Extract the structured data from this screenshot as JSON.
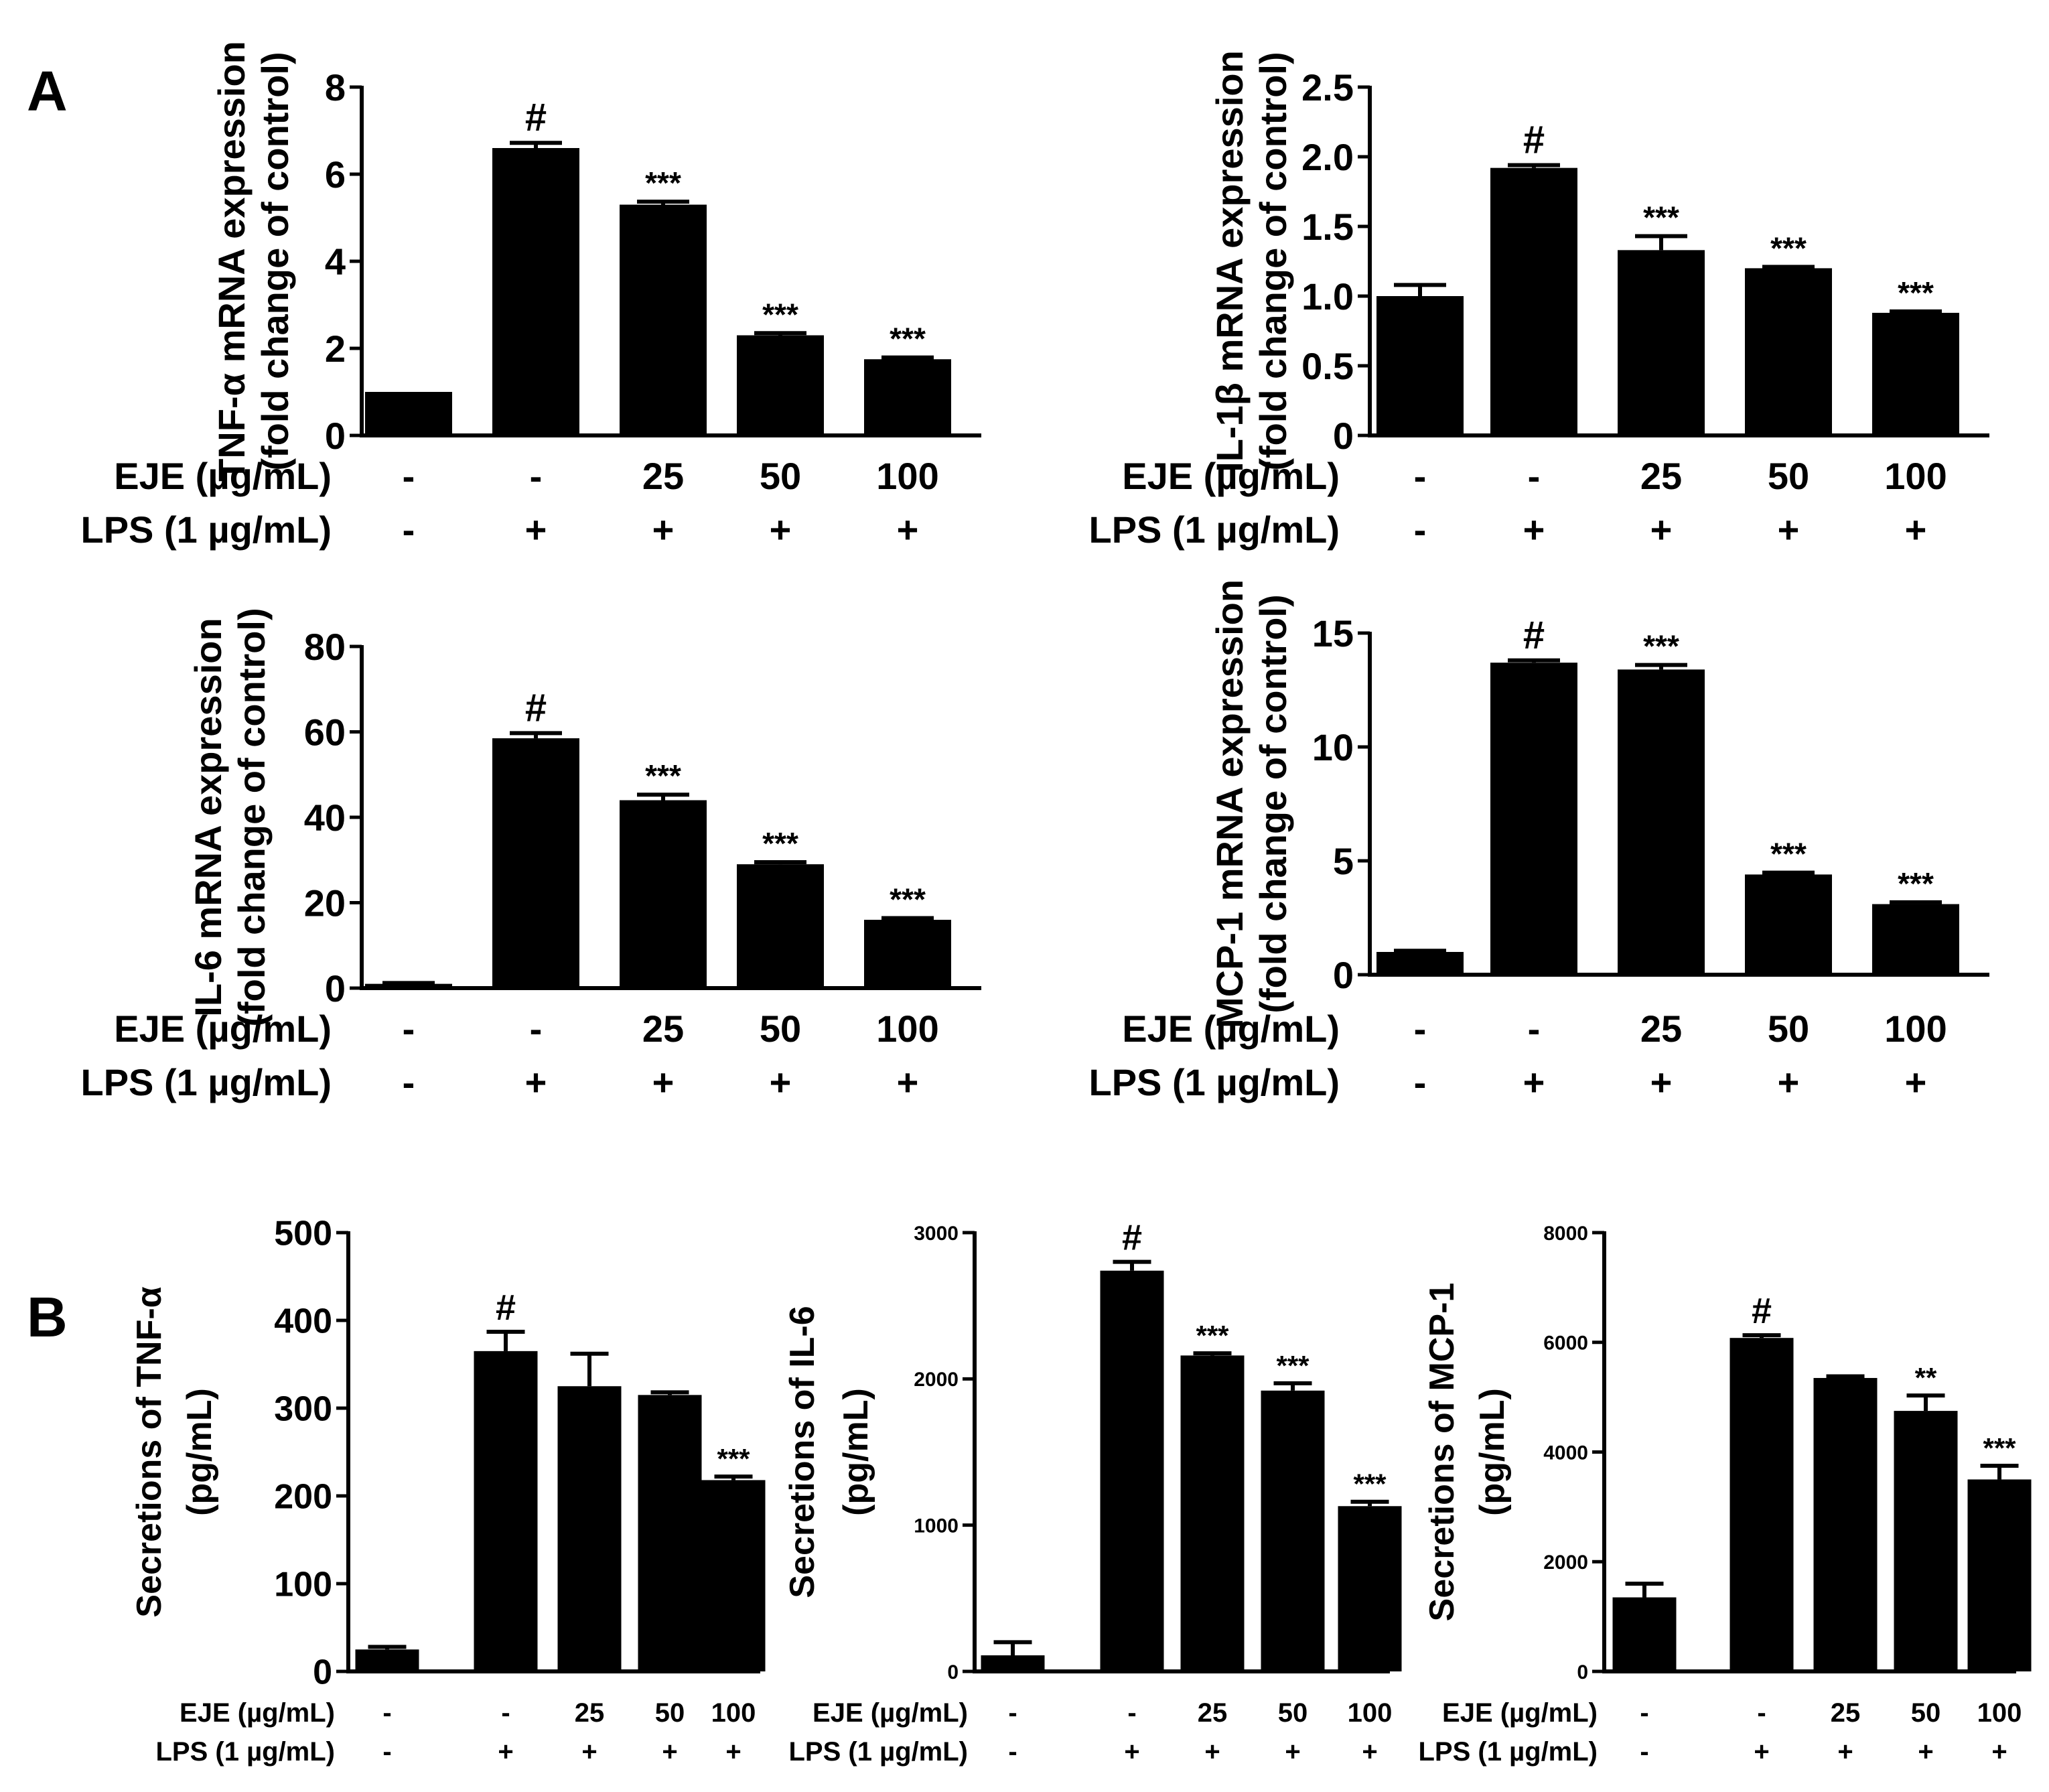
{
  "chart_data": [
    {
      "type": "bar",
      "id": "tnf-mrna",
      "panel_label": "A",
      "ylabel_line1": "TNF-α mRNA expression",
      "ylabel_line2": "(fold change of control)",
      "ylim": [
        0,
        8
      ],
      "yticks": [
        0,
        2,
        4,
        6,
        8
      ],
      "ytick_labels": [
        "0",
        "2",
        "4",
        "6",
        "8"
      ],
      "values": [
        1.0,
        6.6,
        5.3,
        2.3,
        1.75
      ],
      "errors": [
        0.0,
        0.12,
        0.07,
        0.05,
        0.04
      ],
      "annotations": [
        "",
        "#",
        "***",
        "***",
        "***"
      ],
      "rows": [
        {
          "label": "EJE (µg/mL)",
          "values": [
            "-",
            "-",
            "25",
            "50",
            "100"
          ]
        },
        {
          "label": "LPS (1 µg/mL)",
          "values": [
            "-",
            "+",
            "+",
            "+",
            "+"
          ]
        }
      ]
    },
    {
      "type": "bar",
      "id": "il1b-mrna",
      "panel_label": "",
      "ylabel_line1": "IL-1β mRNA expression",
      "ylabel_line2": "(fold change of control)",
      "ylim": [
        0,
        2.5
      ],
      "yticks": [
        0,
        0.5,
        1.0,
        1.5,
        2.0,
        2.5
      ],
      "ytick_labels": [
        "0",
        "0.5",
        "1.0",
        "1.5",
        "2.0",
        "2.5"
      ],
      "values": [
        1.0,
        1.92,
        1.33,
        1.2,
        0.88
      ],
      "errors": [
        0.08,
        0.02,
        0.1,
        0.01,
        0.01
      ],
      "annotations": [
        "",
        "#",
        "***",
        "***",
        "***"
      ],
      "rows": [
        {
          "label": "EJE (µg/mL)",
          "values": [
            "-",
            "-",
            "25",
            "50",
            "100"
          ]
        },
        {
          "label": "LPS (1 µg/mL)",
          "values": [
            "-",
            "+",
            "+",
            "+",
            "+"
          ]
        }
      ]
    },
    {
      "type": "bar",
      "id": "il6-mrna",
      "panel_label": "",
      "ylabel_line1": "IL-6 mRNA expression",
      "ylabel_line2": "(fold change of control)",
      "ylim": [
        0,
        80
      ],
      "yticks": [
        0,
        20,
        40,
        60,
        80
      ],
      "ytick_labels": [
        "0",
        "20",
        "40",
        "60",
        "80"
      ],
      "values": [
        1.0,
        58.5,
        44.0,
        29.0,
        16.0
      ],
      "errors": [
        0.2,
        1.2,
        1.3,
        0.5,
        0.4
      ],
      "annotations": [
        "",
        "#",
        "***",
        "***",
        "***"
      ],
      "rows": [
        {
          "label": "EJE (µg/mL)",
          "values": [
            "-",
            "-",
            "25",
            "50",
            "100"
          ]
        },
        {
          "label": "LPS (1 µg/mL)",
          "values": [
            "-",
            "+",
            "+",
            "+",
            "+"
          ]
        }
      ]
    },
    {
      "type": "bar",
      "id": "mcp1-mrna",
      "panel_label": "",
      "ylabel_line1": "MCP-1 mRNA expression",
      "ylabel_line2": "(fold change of control)",
      "ylim": [
        0,
        15
      ],
      "yticks": [
        0,
        5,
        10,
        15
      ],
      "ytick_labels": [
        "0",
        "5",
        "10",
        "15"
      ],
      "values": [
        1.0,
        13.7,
        13.4,
        4.4,
        3.1
      ],
      "errors": [
        0.05,
        0.1,
        0.2,
        0.08,
        0.08
      ],
      "annotations": [
        "",
        "#",
        "***",
        "***",
        "***"
      ],
      "rows": [
        {
          "label": "EJE (µg/mL)",
          "values": [
            "-",
            "-",
            "25",
            "50",
            "100"
          ]
        },
        {
          "label": "LPS (1 µg/mL)",
          "values": [
            "-",
            "+",
            "+",
            "+",
            "+"
          ]
        }
      ]
    },
    {
      "type": "bar",
      "id": "tnf-secretion",
      "panel_label": "B",
      "ylabel_line1": "Secretions of TNF-α",
      "ylabel_line2": "(pg/mL)",
      "ylim": [
        0,
        500
      ],
      "yticks": [
        0,
        100,
        200,
        300,
        400,
        500
      ],
      "ytick_labels": [
        "0",
        "100",
        "200",
        "300",
        "400",
        "500"
      ],
      "values": [
        25,
        365,
        325,
        315,
        218
      ],
      "errors": [
        3,
        22,
        37,
        3,
        4
      ],
      "annotations": [
        "",
        "#",
        "",
        "",
        "***"
      ],
      "rows": [
        {
          "label": "EJE (µg/mL)",
          "values": [
            "-",
            "-",
            "25",
            "50",
            "100"
          ]
        },
        {
          "label": "LPS (1 µg/mL)",
          "values": [
            "-",
            "+",
            "+",
            "+",
            "+"
          ]
        }
      ]
    },
    {
      "type": "bar",
      "id": "il6-secretion",
      "panel_label": "",
      "ylabel_line1": "Secretions of IL-6",
      "ylabel_line2": "(pg/mL)",
      "ylim": [
        0,
        3000
      ],
      "yticks": [
        0,
        1000,
        2000,
        3000
      ],
      "ytick_labels": [
        "0",
        "1000",
        "2000",
        "3000"
      ],
      "values": [
        110,
        2740,
        2160,
        1920,
        1130
      ],
      "errors": [
        90,
        60,
        15,
        50,
        30
      ],
      "annotations": [
        "",
        "#",
        "***",
        "***",
        "***"
      ],
      "rows": [
        {
          "label": "EJE (µg/mL)",
          "values": [
            "-",
            "-",
            "25",
            "50",
            "100"
          ]
        },
        {
          "label": "LPS (1 µg/mL)",
          "values": [
            "-",
            "+",
            "+",
            "+",
            "+"
          ]
        }
      ]
    },
    {
      "type": "bar",
      "id": "mcp1-secretion",
      "panel_label": "",
      "ylabel_line1": "Secretions of MCP-1",
      "ylabel_line2": "(pg/mL)",
      "ylim": [
        0,
        8000
      ],
      "yticks": [
        0,
        2000,
        4000,
        6000,
        8000
      ],
      "ytick_labels": [
        "0",
        "2000",
        "4000",
        "6000",
        "8000"
      ],
      "values": [
        1350,
        6080,
        5350,
        4750,
        3500
      ],
      "errors": [
        250,
        50,
        30,
        280,
        250
      ],
      "annotations": [
        "",
        "#",
        "",
        "**",
        "***"
      ],
      "rows": [
        {
          "label": "EJE (µg/mL)",
          "values": [
            "-",
            "-",
            "25",
            "50",
            "100"
          ]
        },
        {
          "label": "LPS (1 µg/mL)",
          "values": [
            "-",
            "+",
            "+",
            "+",
            "+"
          ]
        }
      ]
    }
  ]
}
